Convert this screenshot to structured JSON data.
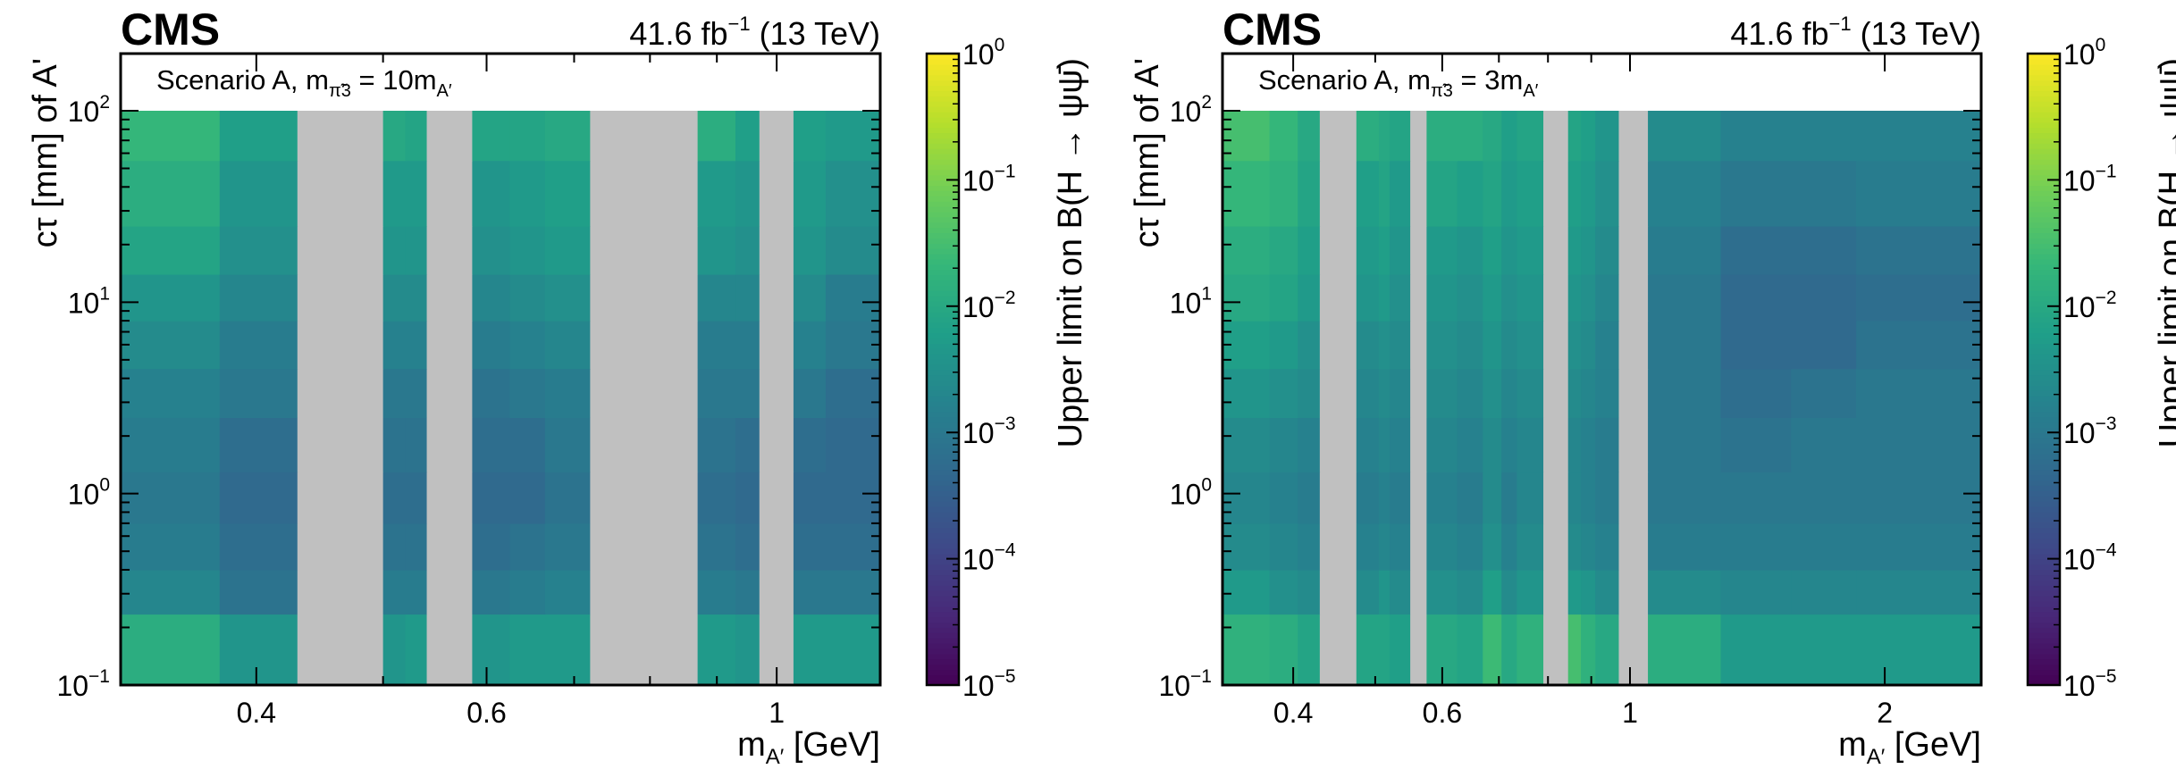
{
  "chart_data": [
    {
      "type": "heatmap",
      "experiment": "CMS",
      "lumi_text": "41.6 fb",
      "lumi_exp": "−1",
      "energy_text": "(13 TeV)",
      "annotation": {
        "text": "Scenario A, m",
        "sub": "π̃3",
        "mid": " = 10m",
        "sub2": "A′"
      },
      "xlabel": {
        "text": "m",
        "sub": "A′",
        "rest": " [GeV]"
      },
      "ylabel": "cτ [mm] of A'",
      "xscale": "log",
      "yscale": "log",
      "xlim": [
        0.315,
        1.2
      ],
      "ylim": [
        0.1,
        200
      ],
      "x_ticks": [
        {
          "v": 0.4,
          "label": "0.4"
        },
        {
          "v": 0.6,
          "label": "0.6"
        },
        {
          "v": 1,
          "label": "1"
        }
      ],
      "y_ticks": [
        {
          "v": 0.1,
          "base": "10",
          "exp": "−1"
        },
        {
          "v": 1,
          "base": "10",
          "exp": "0"
        },
        {
          "v": 10,
          "base": "10",
          "exp": "1"
        },
        {
          "v": 100,
          "base": "10",
          "exp": "2"
        }
      ],
      "colorbar": {
        "label": "Upper limit on B(H → ψψ̄)",
        "range_log10": [
          -5,
          0
        ],
        "ticks": [
          {
            "base": "10",
            "exp": "0"
          },
          {
            "base": "10",
            "exp": "−1"
          },
          {
            "base": "10",
            "exp": "−2"
          },
          {
            "base": "10",
            "exp": "−3"
          },
          {
            "base": "10",
            "exp": "−4"
          },
          {
            "base": "10",
            "exp": "−5"
          }
        ]
      },
      "x_edges": [
        0.315,
        0.375,
        0.43,
        0.5,
        0.52,
        0.54,
        0.585,
        0.625,
        0.665,
        0.72,
        0.76,
        0.8,
        0.87,
        0.93,
        0.97,
        1.03,
        1.09,
        1.2
      ],
      "x_masked": [
        2,
        5,
        9,
        14
      ],
      "y_edges": [
        0.1,
        0.235,
        0.4,
        0.7,
        1.3,
        2.5,
        4.5,
        8.0,
        14.0,
        25.0,
        55.0,
        100.0
      ],
      "values_log10": [
        [
          -1.9,
          -2.4,
          null,
          -2.4,
          -2.3,
          null,
          -2.4,
          -2.3,
          -2.3,
          null,
          null,
          null,
          -2.3,
          -2.4,
          null,
          -2.3,
          -2.3
        ],
        [
          -2.7,
          -3.1,
          null,
          -2.9,
          -2.9,
          null,
          -3.0,
          -2.9,
          -2.8,
          null,
          null,
          null,
          -2.9,
          -3.0,
          null,
          -3.0,
          -3.0
        ],
        [
          -2.9,
          -3.2,
          null,
          -3.1,
          -3.1,
          null,
          -3.2,
          -3.1,
          -3.0,
          null,
          null,
          null,
          -3.1,
          -3.2,
          null,
          -3.2,
          -3.2
        ],
        [
          -3.0,
          -3.3,
          null,
          -3.2,
          -3.2,
          null,
          -3.3,
          -3.3,
          -3.1,
          null,
          null,
          null,
          -3.2,
          -3.3,
          null,
          -3.3,
          -3.3
        ],
        [
          -2.9,
          -3.2,
          null,
          -3.1,
          -3.1,
          null,
          -3.2,
          -3.2,
          -3.0,
          null,
          null,
          null,
          -3.1,
          -3.2,
          null,
          -3.2,
          -3.3
        ],
        [
          -2.8,
          -3.0,
          null,
          -3.0,
          -3.0,
          null,
          -3.1,
          -3.0,
          -2.9,
          null,
          null,
          null,
          -3.0,
          -3.0,
          null,
          -3.0,
          -3.2
        ],
        [
          -2.6,
          -2.9,
          null,
          -2.8,
          -2.8,
          null,
          -2.9,
          -2.8,
          -2.7,
          null,
          null,
          null,
          -2.9,
          -2.9,
          null,
          -2.8,
          -3.0
        ],
        [
          -2.4,
          -2.7,
          null,
          -2.6,
          -2.6,
          null,
          -2.7,
          -2.6,
          -2.5,
          null,
          null,
          null,
          -2.7,
          -2.7,
          null,
          -2.6,
          -2.9
        ],
        [
          -2.1,
          -2.5,
          null,
          -2.4,
          -2.4,
          null,
          -2.5,
          -2.4,
          -2.3,
          null,
          null,
          null,
          -2.4,
          -2.5,
          null,
          -2.4,
          -2.6
        ],
        [
          -1.9,
          -2.4,
          null,
          -2.3,
          -2.3,
          null,
          -2.4,
          -2.3,
          -2.2,
          null,
          null,
          null,
          -2.3,
          -2.4,
          null,
          -2.3,
          -2.5
        ],
        [
          -1.7,
          -2.2,
          null,
          -2.0,
          -2.1,
          null,
          -2.1,
          -2.1,
          -2.0,
          null,
          null,
          null,
          -1.9,
          -2.2,
          null,
          -2.2,
          -2.3
        ]
      ]
    },
    {
      "type": "heatmap",
      "experiment": "CMS",
      "lumi_text": "41.6 fb",
      "lumi_exp": "−1",
      "energy_text": "(13 TeV)",
      "annotation": {
        "text": "Scenario A, m",
        "sub": "π̃3",
        "mid": " = 3m",
        "sub2": "A′"
      },
      "xlabel": {
        "text": "m",
        "sub": "A′",
        "rest": " [GeV]"
      },
      "ylabel": "cτ [mm] of A'",
      "xscale": "log",
      "yscale": "log",
      "xlim": [
        0.33,
        2.6
      ],
      "ylim": [
        0.1,
        200
      ],
      "x_ticks": [
        {
          "v": 0.4,
          "label": "0.4"
        },
        {
          "v": 0.6,
          "label": "0.6"
        },
        {
          "v": 1,
          "label": "1"
        },
        {
          "v": 2,
          "label": "2"
        }
      ],
      "y_ticks": [
        {
          "v": 0.1,
          "base": "10",
          "exp": "−1"
        },
        {
          "v": 1,
          "base": "10",
          "exp": "0"
        },
        {
          "v": 10,
          "base": "10",
          "exp": "1"
        },
        {
          "v": 100,
          "base": "10",
          "exp": "2"
        }
      ],
      "colorbar": {
        "label": "Upper limit on B(H → ψψ̄)",
        "range_log10": [
          -5,
          0
        ],
        "ticks": [
          {
            "base": "10",
            "exp": "0"
          },
          {
            "base": "10",
            "exp": "−1"
          },
          {
            "base": "10",
            "exp": "−2"
          },
          {
            "base": "10",
            "exp": "−3"
          },
          {
            "base": "10",
            "exp": "−4"
          },
          {
            "base": "10",
            "exp": "−5"
          }
        ]
      },
      "x_edges": [
        0.33,
        0.375,
        0.405,
        0.43,
        0.475,
        0.505,
        0.52,
        0.55,
        0.575,
        0.625,
        0.67,
        0.705,
        0.735,
        0.79,
        0.845,
        0.875,
        0.91,
        0.97,
        1.05,
        1.28,
        1.55,
        1.85,
        2.6
      ],
      "x_masked": [
        3,
        7,
        13,
        17
      ],
      "y_edges": [
        0.1,
        0.235,
        0.4,
        0.7,
        1.3,
        2.5,
        4.5,
        8.0,
        14.0,
        25.0,
        55.0,
        100.0
      ],
      "values_log10": [
        [
          -1.8,
          -1.9,
          -2.1,
          null,
          -2.1,
          -2.1,
          -2.2,
          null,
          -2.0,
          -2.1,
          -1.6,
          -2.0,
          -1.8,
          null,
          -1.5,
          -1.8,
          -2.0,
          null,
          -1.9,
          -2.3,
          -2.3,
          -2.3
        ],
        [
          -2.3,
          -2.5,
          -2.6,
          null,
          -2.6,
          -2.4,
          -2.6,
          null,
          -2.5,
          -2.6,
          -2.2,
          -2.6,
          -2.4,
          null,
          -2.3,
          -2.4,
          -2.6,
          null,
          -2.6,
          -2.7,
          -2.7,
          -2.7
        ],
        [
          -2.6,
          -2.7,
          -2.8,
          null,
          -2.8,
          -2.7,
          -2.8,
          null,
          -2.7,
          -2.8,
          -2.5,
          -2.8,
          -2.6,
          null,
          -2.6,
          -2.7,
          -2.8,
          null,
          -2.9,
          -2.9,
          -2.9,
          -2.9
        ],
        [
          -2.7,
          -2.8,
          -2.9,
          null,
          -2.9,
          -2.8,
          -2.9,
          null,
          -2.8,
          -2.9,
          -2.6,
          -2.9,
          -2.7,
          null,
          -2.7,
          -2.8,
          -2.9,
          null,
          -3.0,
          -3.0,
          -3.0,
          -3.0
        ],
        [
          -2.6,
          -2.7,
          -2.8,
          null,
          -2.8,
          -2.7,
          -2.8,
          null,
          -2.7,
          -2.8,
          -2.6,
          -2.8,
          -2.7,
          null,
          -2.7,
          -2.8,
          -2.9,
          null,
          -3.0,
          -3.1,
          -3.0,
          -3.0
        ],
        [
          -2.4,
          -2.5,
          -2.6,
          null,
          -2.7,
          -2.6,
          -2.7,
          null,
          -2.6,
          -2.7,
          -2.5,
          -2.7,
          -2.6,
          null,
          -2.6,
          -2.7,
          -2.8,
          null,
          -3.0,
          -3.2,
          -3.1,
          -3.0
        ],
        [
          -2.2,
          -2.3,
          -2.5,
          null,
          -2.6,
          -2.5,
          -2.6,
          null,
          -2.5,
          -2.6,
          -2.4,
          -2.6,
          -2.5,
          null,
          -2.5,
          -2.6,
          -2.8,
          null,
          -3.0,
          -3.3,
          -3.3,
          -3.1
        ],
        [
          -2.0,
          -2.1,
          -2.3,
          null,
          -2.4,
          -2.3,
          -2.5,
          null,
          -2.4,
          -2.5,
          -2.3,
          -2.5,
          -2.4,
          null,
          -2.4,
          -2.5,
          -2.7,
          null,
          -3.0,
          -3.3,
          -3.3,
          -3.2
        ],
        [
          -1.9,
          -2.0,
          -2.2,
          null,
          -2.3,
          -2.2,
          -2.4,
          null,
          -2.3,
          -2.4,
          -2.2,
          -2.4,
          -2.3,
          null,
          -2.3,
          -2.4,
          -2.6,
          null,
          -2.9,
          -3.2,
          -3.2,
          -3.1
        ],
        [
          -1.7,
          -1.8,
          -2.1,
          null,
          -2.2,
          -2.1,
          -2.3,
          null,
          -2.1,
          -2.2,
          -2.1,
          -2.3,
          -2.2,
          null,
          -2.2,
          -2.3,
          -2.5,
          null,
          -2.8,
          -3.0,
          -3.0,
          -2.9
        ],
        [
          -1.5,
          -1.7,
          -2.0,
          null,
          -1.9,
          -2.0,
          -2.1,
          null,
          -1.9,
          -1.9,
          -2.0,
          -2.2,
          -2.1,
          null,
          -2.1,
          -2.2,
          -2.4,
          null,
          -2.6,
          -2.8,
          -2.8,
          -2.8
        ]
      ]
    }
  ]
}
